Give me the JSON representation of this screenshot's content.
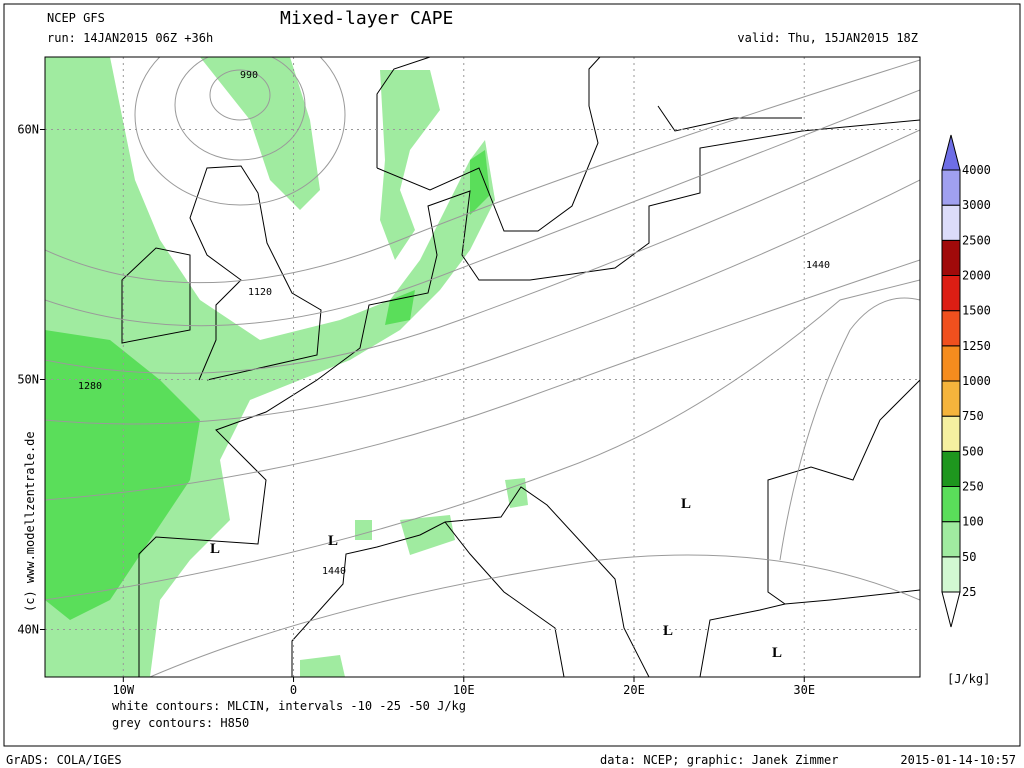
{
  "header": {
    "model": "NCEP GFS",
    "run": "run: 14JAN2015 06Z +36h",
    "title": "Mixed-layer CAPE",
    "valid": "valid: Thu, 15JAN2015 18Z"
  },
  "map": {
    "xlim": [
      -14.6,
      36.8
    ],
    "ylim": [
      38.1,
      62.9
    ],
    "xticks": [
      {
        "value": -10,
        "label": "10W"
      },
      0,
      {
        "value": 10,
        "label": "10E"
      },
      {
        "value": 20,
        "label": "20E"
      },
      {
        "value": 30,
        "label": "30E"
      }
    ],
    "yticks": [
      {
        "value": 40,
        "label": "40N"
      },
      {
        "value": 50,
        "label": "50N"
      },
      {
        "value": 60,
        "label": "60N"
      }
    ],
    "grid": true,
    "contour_labels": [
      990,
      1120,
      1280,
      1440,
      1440
    ],
    "lows": [
      "L",
      "L",
      "L",
      "L",
      "L"
    ]
  },
  "colorbar": {
    "levels": [
      25,
      50,
      100,
      250,
      500,
      750,
      1000,
      1250,
      1500,
      2000,
      2500,
      3000,
      4000
    ],
    "colors": [
      "#ffffff",
      "#d2f8d2",
      "#a0eba0",
      "#5ade5a",
      "#1e961e",
      "#f5f0a0",
      "#f5b43c",
      "#f58c1e",
      "#f0501e",
      "#dc1e14",
      "#a00a0a",
      "#dcdcfa",
      "#a0a0f0",
      "#6e6ee6",
      "#4040c0"
    ],
    "unit": "[J/kg]"
  },
  "notes": [
    "white contours: MLCIN, intervals -10 -25 -50 J/kg",
    "grey contours: H850"
  ],
  "credit": "(c) www.modellzentrale.de",
  "footer": {
    "left": "GrADS: COLA/IGES",
    "center": "data: NCEP; graphic: Janek Zimmer",
    "right": "2015-01-14-10:57"
  }
}
